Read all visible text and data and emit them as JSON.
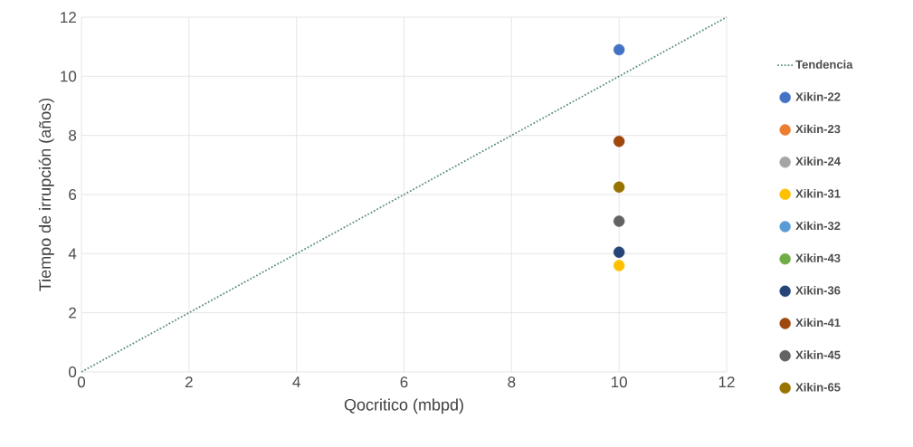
{
  "chart_data": {
    "type": "scatter",
    "xlabel": "Qocritico (mbpd)",
    "ylabel": "Tiempo de irrupción (años)",
    "xlim": [
      0,
      12
    ],
    "ylim": [
      0,
      12
    ],
    "xticks": [
      0,
      2,
      4,
      6,
      8,
      10,
      12
    ],
    "yticks": [
      0,
      2,
      4,
      6,
      8,
      10,
      12
    ],
    "grid": true,
    "legend": "right",
    "series": [
      {
        "name": "Tendencia",
        "type": "line",
        "marker": "none",
        "line_style": "dotted",
        "color": "#5f8f80",
        "x": [
          0,
          12
        ],
        "values": [
          0,
          12
        ]
      },
      {
        "name": "Xikin-22",
        "marker": "circle",
        "color": "#4472c4",
        "x": [
          10
        ],
        "values": [
          10.9
        ]
      },
      {
        "name": "Xikin-23",
        "marker": "circle",
        "color": "#ed7d31",
        "x": [
          null
        ],
        "values": [
          null
        ]
      },
      {
        "name": "Xikin-24",
        "marker": "circle",
        "color": "#a5a5a5",
        "x": [
          null
        ],
        "values": [
          null
        ]
      },
      {
        "name": "Xikin-31",
        "marker": "circle",
        "color": "#ffc000",
        "x": [
          10
        ],
        "values": [
          3.6
        ]
      },
      {
        "name": "Xikin-32",
        "marker": "circle",
        "color": "#5b9bd5",
        "x": [
          null
        ],
        "values": [
          null
        ]
      },
      {
        "name": "Xikin-43",
        "marker": "circle",
        "color": "#70ad47",
        "x": [
          null
        ],
        "values": [
          null
        ]
      },
      {
        "name": "Xikin-36",
        "marker": "circle",
        "color": "#264478",
        "x": [
          10
        ],
        "values": [
          4.05
        ]
      },
      {
        "name": "Xikin-41",
        "marker": "circle",
        "color": "#9e480e",
        "x": [
          10
        ],
        "values": [
          7.8
        ]
      },
      {
        "name": "Xikin-45",
        "marker": "circle",
        "color": "#636363",
        "x": [
          10
        ],
        "values": [
          5.1
        ]
      },
      {
        "name": "Xikin-65",
        "marker": "circle",
        "color": "#997300",
        "x": [
          10
        ],
        "values": [
          6.25
        ]
      }
    ]
  }
}
